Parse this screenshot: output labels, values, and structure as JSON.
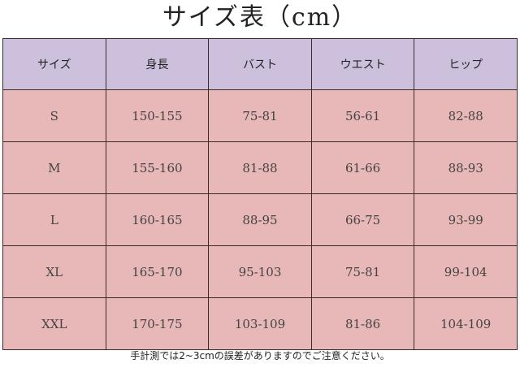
{
  "title": "サイズ表（cm）",
  "table": {
    "headers": [
      "サイズ",
      "身長",
      "バスト",
      "ウエスト",
      "ヒップ"
    ],
    "rows": [
      [
        "S",
        "150-155",
        "75-81",
        "56-61",
        "82-88"
      ],
      [
        "M",
        "155-160",
        "81-88",
        "61-66",
        "88-93"
      ],
      [
        "L",
        "160-165",
        "88-95",
        "66-75",
        "93-99"
      ],
      [
        "XL",
        "165-170",
        "95-103",
        "75-81",
        "99-104"
      ],
      [
        "XXL",
        "170-175",
        "103-109",
        "81-86",
        "104-109"
      ]
    ]
  },
  "note": "手計測では2~3cmの誤差がありますのでご注意ください。",
  "colors": {
    "header_bg": "#cdc0dc",
    "row_bg": "#e8b7b7",
    "border": "#3a2a2a"
  }
}
